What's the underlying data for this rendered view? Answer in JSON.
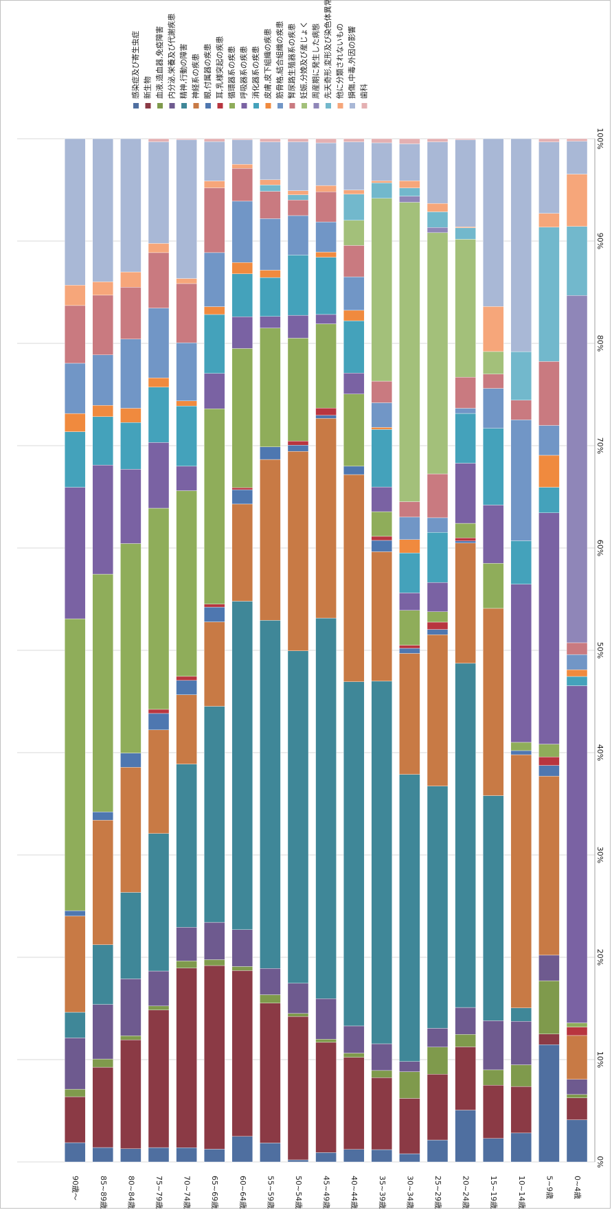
{
  "chart_data": {
    "type": "bar",
    "stacked": "100%",
    "orientation": "rotated-horizontal",
    "categories": [
      "0~4歳",
      "5~9歳",
      "10~14歳",
      "15~19歳",
      "20~24歳",
      "25~29歳",
      "30~34歳",
      "35~39歳",
      "40~44歳",
      "45~49歳",
      "50~54歳",
      "55~59歳",
      "60~64歳",
      "65~69歳",
      "70~74歳",
      "75~79歳",
      "80~84歳",
      "85~89歳",
      "90歳～"
    ],
    "value_axis_labels": [
      "0%",
      "10%",
      "20%",
      "30%",
      "40%",
      "50%",
      "60%",
      "70%",
      "80%",
      "90%",
      "100%"
    ],
    "ylim": [
      0,
      100
    ],
    "legend_position": "top",
    "series": [
      {
        "name": "感染症及び寄生虫症",
        "color": "#4f6fa0",
        "values": [
          5.0,
          11.0,
          2.8,
          2.3,
          5.0,
          2.1,
          0.8,
          1.2,
          1.2,
          0.9,
          0.2,
          1.8,
          2.5,
          1.3,
          1.4,
          1.4,
          1.3,
          1.4,
          1.8
        ]
      },
      {
        "name": "新生物",
        "color": "#8b3a45",
        "values": [
          2.6,
          1.0,
          4.5,
          5.2,
          6.1,
          6.3,
          5.4,
          7.0,
          8.8,
          10.6,
          13.8,
          13.3,
          16.2,
          18.7,
          17.6,
          13.4,
          10.7,
          7.8,
          4.3
        ]
      },
      {
        "name": "血液,造血器,免疫障害",
        "color": "#7f9a4c",
        "values": [
          0.4,
          5.0,
          2.1,
          1.5,
          1.2,
          2.6,
          2.6,
          0.7,
          0.4,
          0.3,
          0.3,
          0.8,
          0.4,
          0.6,
          0.7,
          0.4,
          0.4,
          0.8,
          0.7
        ]
      },
      {
        "name": "内分泌,栄養及び代謝疾患",
        "color": "#6e5a8f",
        "values": [
          1.8,
          2.4,
          4.2,
          4.8,
          2.6,
          1.8,
          1.0,
          2.6,
          2.6,
          3.9,
          2.9,
          2.5,
          3.6,
          3.8,
          3.3,
          3.4,
          5.6,
          5.3,
          4.8
        ]
      },
      {
        "name": "精神,行動の障害",
        "color": "#3f8798",
        "values": [
          0.0,
          0.0,
          1.3,
          22.0,
          33.2,
          23.2,
          28.0,
          35.3,
          32.9,
          36.6,
          32.0,
          33.1,
          32.1,
          22.0,
          16.0,
          13.4,
          8.5,
          5.8,
          2.4
        ]
      },
      {
        "name": "神経系の疾患",
        "color": "#c87a45",
        "values": [
          5.2,
          16.8,
          24.5,
          18.3,
          11.6,
          14.5,
          11.8,
          12.6,
          19.8,
          19.2,
          19.2,
          15.3,
          9.5,
          8.6,
          6.8,
          10.1,
          12.3,
          12.1,
          9.0
        ]
      },
      {
        "name": "眼,付属器の疾患",
        "color": "#4e77b0",
        "values": [
          0.0,
          1.0,
          0.4,
          0.0,
          0.2,
          0.5,
          0.5,
          1.1,
          0.8,
          0.3,
          0.6,
          1.2,
          1.4,
          1.5,
          1.4,
          1.6,
          1.4,
          0.8,
          0.5
        ]
      },
      {
        "name": "耳,乳様突起の疾患",
        "color": "#b8353f",
        "values": [
          1.0,
          0.8,
          0.0,
          0.0,
          0.3,
          0.7,
          0.3,
          0.4,
          0.0,
          0.7,
          0.4,
          0.0,
          0.2,
          0.3,
          0.4,
          0.4,
          0.0,
          0.0,
          0.0
        ]
      },
      {
        "name": "循環器系の疾患",
        "color": "#8fad5a",
        "values": [
          0.5,
          1.2,
          0.8,
          4.4,
          1.4,
          1.0,
          3.4,
          2.4,
          6.9,
          8.1,
          9.9,
          11.3,
          13.6,
          19.9,
          18.2,
          19.6,
          20.6,
          23.1,
          27.3
        ]
      },
      {
        "name": "呼吸器系の疾患",
        "color": "#7a62a3",
        "values": [
          40.0,
          21.7,
          15.3,
          5.7,
          5.8,
          2.8,
          1.7,
          2.4,
          2.0,
          0.9,
          2.2,
          1.1,
          3.1,
          3.6,
          2.4,
          6.4,
          7.3,
          10.6,
          12.3
        ]
      },
      {
        "name": "消化器系の疾患",
        "color": "#44a2bb",
        "values": [
          1.1,
          2.4,
          4.2,
          7.5,
          4.8,
          4.8,
          3.9,
          5.6,
          5.0,
          5.5,
          5.8,
          3.7,
          4.2,
          6.0,
          5.9,
          5.4,
          4.6,
          4.7,
          5.2
        ]
      },
      {
        "name": "皮膚,皮下組織の疾患",
        "color": "#f08a3e",
        "values": [
          0.8,
          3.0,
          0.0,
          0.0,
          0.0,
          0.0,
          1.3,
          0.2,
          1.0,
          0.5,
          0.0,
          0.7,
          1.1,
          0.8,
          0.5,
          0.9,
          1.4,
          1.1,
          1.7
        ]
      },
      {
        "name": "筋骨格,結合組織の疾患",
        "color": "#7196c6",
        "values": [
          1.8,
          2.8,
          11.7,
          3.9,
          0.5,
          1.4,
          2.2,
          2.4,
          3.2,
          2.9,
          3.8,
          4.9,
          6.0,
          5.5,
          5.7,
          6.8,
          6.8,
          4.9,
          4.7
        ]
      },
      {
        "name": "腎尿路生殖器系の疾患",
        "color": "#c97a80",
        "values": [
          1.4,
          6.0,
          1.9,
          1.4,
          3.0,
          4.2,
          1.5,
          2.1,
          3.0,
          2.9,
          1.5,
          2.6,
          3.2,
          6.6,
          5.8,
          5.4,
          5.1,
          5.8,
          5.4
        ]
      },
      {
        "name": "妊娠,分娩及び産じょく",
        "color": "#a3c07a",
        "values": [
          0.0,
          0.0,
          0.0,
          2.2,
          13.3,
          23.1,
          29.2,
          17.8,
          2.4,
          0.0,
          0.0,
          0.0,
          0.0,
          0.0,
          0.0,
          0.0,
          0.0,
          0.0,
          0.0
        ]
      },
      {
        "name": "周産期に発生した病態",
        "color": "#8f86b8",
        "values": [
          41.2,
          0.0,
          0.0,
          0.0,
          0.0,
          0.5,
          0.6,
          0.0,
          0.0,
          0.0,
          0.0,
          0.0,
          0.0,
          0.0,
          0.0,
          0.0,
          0.0,
          0.0,
          0.0
        ]
      },
      {
        "name": "先天奇形,変形及び染色体異常",
        "color": "#72b8cc",
        "values": [
          8.2,
          12.6,
          4.7,
          0.0,
          1.1,
          1.5,
          0.8,
          1.5,
          2.5,
          0.0,
          0.5,
          0.6,
          0.0,
          0.0,
          0.0,
          0.0,
          0.0,
          0.0,
          0.0
        ]
      },
      {
        "name": "他に分類されないもの",
        "color": "#f6a67a",
        "values": [
          6.2,
          1.3,
          0.0,
          4.4,
          0.1,
          0.8,
          0.7,
          0.2,
          0.4,
          0.6,
          0.4,
          0.5,
          0.4,
          0.7,
          0.5,
          0.9,
          1.5,
          1.3,
          1.9
        ]
      },
      {
        "name": "損傷,中毒,外因の影響",
        "color": "#a9b8d6",
        "values": [
          3.9,
          6.7,
          20.6,
          16.4,
          8.4,
          5.9,
          3.6,
          3.7,
          4.6,
          4.1,
          4.7,
          3.6,
          2.4,
          4.0,
          13.6,
          9.9,
          13.1,
          13.9,
          13.7
        ]
      },
      {
        "name": "歯科",
        "color": "#e4b0b2",
        "values": [
          0.3,
          0.3,
          0.0,
          0.0,
          0.1,
          0.3,
          0.5,
          0.4,
          0.3,
          0.4,
          0.3,
          0.3,
          0.1,
          0.3,
          0.1,
          0.3,
          0.0,
          0.0,
          0.0
        ]
      }
    ]
  }
}
